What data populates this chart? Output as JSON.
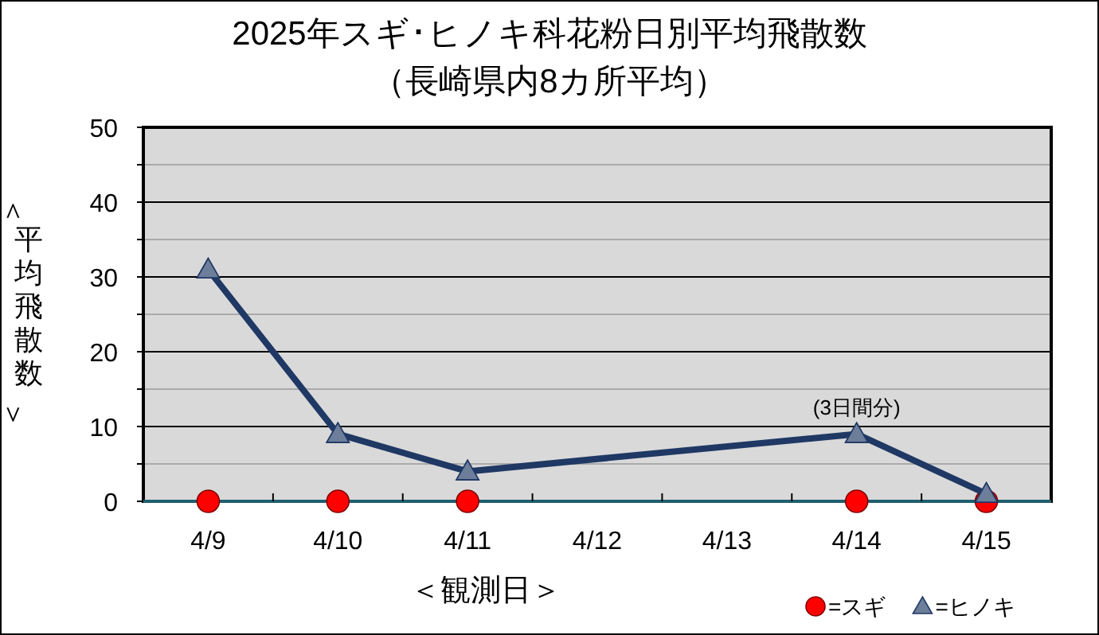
{
  "chart_data": {
    "type": "line",
    "title": "2025年スギ･ヒノキ科花粉日別平均飛散数",
    "subtitle": "（長崎県内8カ所平均）",
    "xlabel": "＜観測日＞",
    "ylabel": "＜平均飛散数＞",
    "categories": [
      "4/9",
      "4/10",
      "4/11",
      "4/12",
      "4/13",
      "4/14",
      "4/15"
    ],
    "series": [
      {
        "name": "=スギ",
        "type": "scatter",
        "color": "#ff0000",
        "marker": "circle",
        "values": [
          0,
          0,
          0,
          null,
          null,
          0,
          0
        ]
      },
      {
        "name": "=ヒノキ",
        "type": "line",
        "color": "#1f3864",
        "marker": "triangle",
        "values": [
          31,
          9,
          4,
          null,
          null,
          9,
          1
        ]
      }
    ],
    "ylim": [
      0,
      50
    ],
    "yticks": [
      0,
      {
        "value": 5,
        "label": null
      },
      10,
      {
        "value": 15,
        "label": null
      },
      20,
      {
        "value": 25,
        "label": null
      },
      30,
      {
        "value": 35,
        "label": null
      },
      40,
      {
        "value": 45,
        "label": null
      },
      50
    ],
    "grid": "y",
    "legend": "bottom right",
    "annotations": [
      {
        "text": "(3日間分)",
        "x": "4/14",
        "y": 9
      }
    ]
  }
}
